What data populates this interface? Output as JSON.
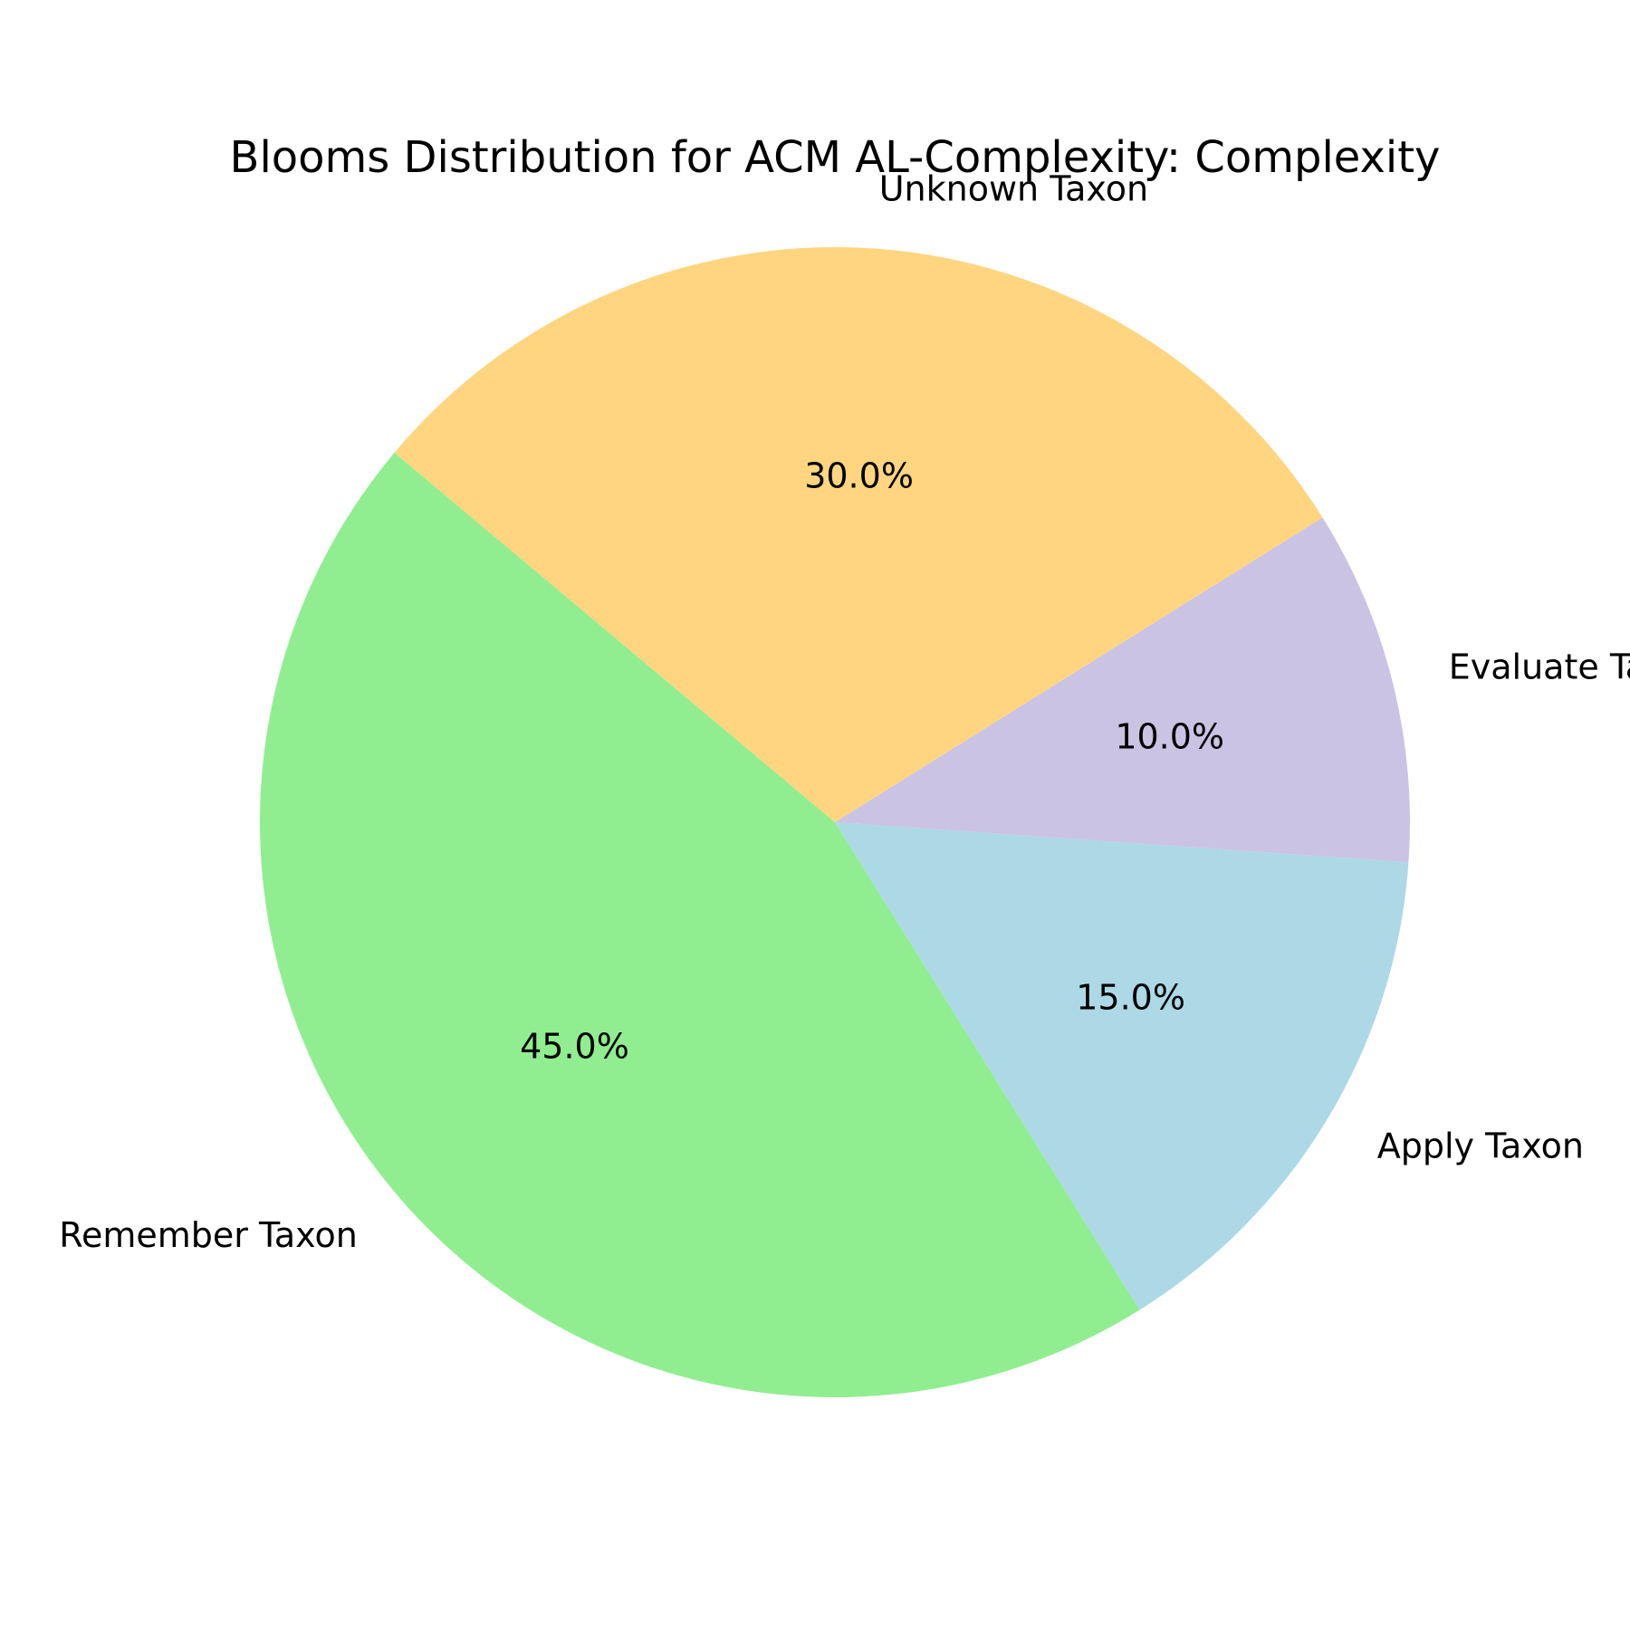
{
  "chart_data": {
    "type": "pie",
    "title": "Blooms Distribution for ACM AL-Complexity: Complexity",
    "start_angle_deg": 140,
    "direction": "counterclockwise",
    "legend": "none",
    "slices": [
      {
        "label": "Remember Taxon",
        "value": 45.0,
        "pct_label": "45.0%",
        "color": "#90ee90"
      },
      {
        "label": "Apply Taxon",
        "value": 15.0,
        "pct_label": "15.0%",
        "color": "#add8e6"
      },
      {
        "label": "Evaluate Taxon",
        "value": 10.0,
        "pct_label": "10.0%",
        "color": "#cbc3e3"
      },
      {
        "label": "Unknown Taxon",
        "value": 30.0,
        "pct_label": "30.0%",
        "color": "#ffd580"
      }
    ]
  }
}
